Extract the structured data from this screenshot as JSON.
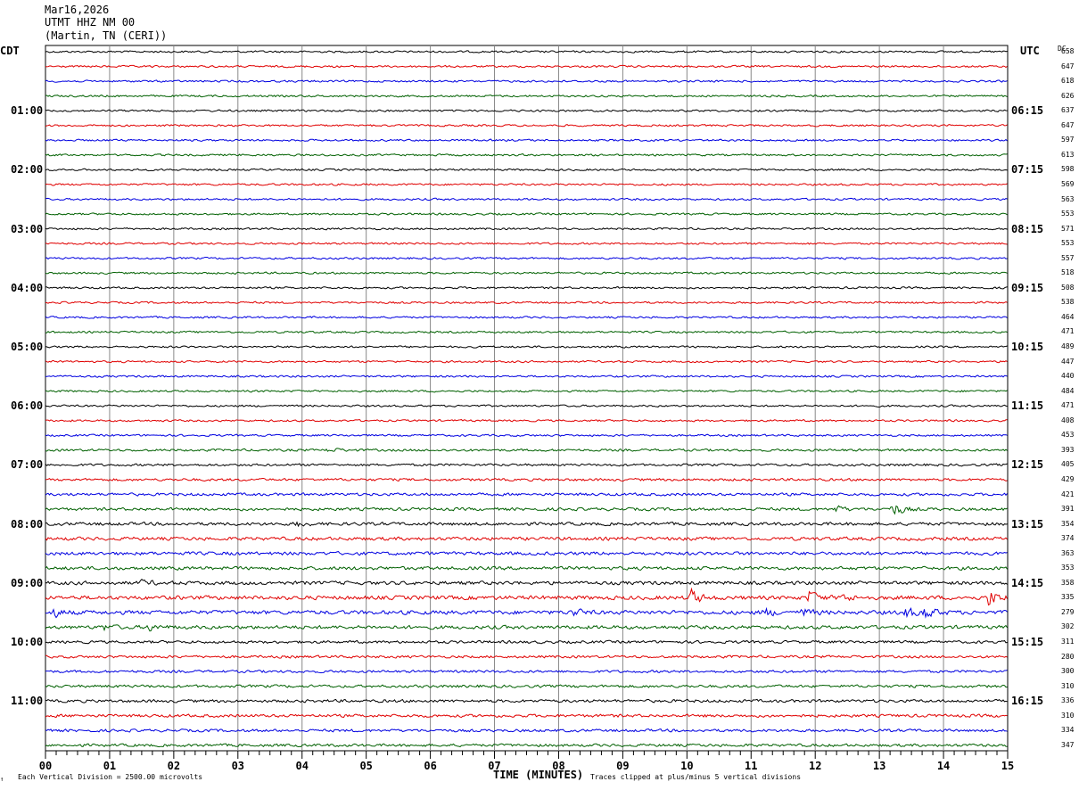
{
  "header": {
    "date": "Mar16,2026",
    "station": "UTMT HHZ NM 00",
    "location": "(Martin, TN (CERI))"
  },
  "left_timezone": "CDT",
  "right_timezone": "UTC",
  "dc_header": "DC",
  "footer": {
    "scale_note": "Each Vertical Division = 2500.00 microvolts",
    "clip_note": "Traces clipped at plus/minus 5 vertical divisions",
    "corner_mark": "↑"
  },
  "colors": {
    "trace_cycle": [
      "#000000",
      "#e00000",
      "#0000e0",
      "#006000"
    ],
    "grid": "#888888",
    "frame": "#000000"
  },
  "chart_data": {
    "type": "line",
    "xlabel": "TIME (MINUTES)",
    "xlim": [
      0,
      15
    ],
    "x_ticks": [
      "00",
      "01",
      "02",
      "03",
      "04",
      "05",
      "06",
      "07",
      "08",
      "09",
      "10",
      "11",
      "12",
      "13",
      "14",
      "15"
    ],
    "left_hour_labels": [
      "01:00",
      "02:00",
      "03:00",
      "04:00",
      "05:00",
      "06:00",
      "07:00",
      "08:00",
      "09:00",
      "10:00",
      "11:00"
    ],
    "right_hour_labels": [
      "06:15",
      "07:15",
      "08:15",
      "09:15",
      "10:15",
      "11:15",
      "12:15",
      "13:15",
      "14:15",
      "15:15",
      "16:15"
    ],
    "trace_count": 48,
    "dc_values": [
      658,
      647,
      618,
      626,
      637,
      647,
      597,
      613,
      598,
      569,
      563,
      553,
      571,
      553,
      557,
      518,
      508,
      538,
      464,
      471,
      489,
      447,
      440,
      484,
      471,
      408,
      453,
      393,
      405,
      429,
      421,
      391,
      354,
      374,
      363,
      353,
      358,
      335,
      279,
      302,
      311,
      280,
      300,
      310,
      336,
      310,
      334,
      347
    ],
    "noise_level": [
      1,
      1,
      1,
      1,
      1,
      1,
      1,
      1,
      1,
      1,
      1,
      1,
      1,
      1,
      1,
      1,
      1,
      1,
      1,
      1,
      1,
      1,
      1,
      1,
      1,
      1,
      1,
      1.2,
      1.2,
      1.3,
      1.4,
      1.5,
      1.6,
      1.7,
      1.7,
      1.7,
      1.8,
      2.0,
      2.0,
      1.8,
      1.4,
      1.3,
      1.3,
      1.4,
      1.5,
      1.5,
      1.4,
      1.4
    ],
    "events": [
      {
        "trace": 27,
        "minute": 4.4,
        "amp": 3
      },
      {
        "trace": 31,
        "minute": 13.2,
        "amp": 9
      },
      {
        "trace": 31,
        "minute": 12.3,
        "amp": 4
      },
      {
        "trace": 32,
        "minute": 3.9,
        "amp": 3
      },
      {
        "trace": 36,
        "minute": 1.5,
        "amp": 3
      },
      {
        "trace": 37,
        "minute": 10.05,
        "amp": 10
      },
      {
        "trace": 37,
        "minute": 11.9,
        "amp": 8
      },
      {
        "trace": 37,
        "minute": 14.7,
        "amp": 10
      },
      {
        "trace": 37,
        "minute": 12.4,
        "amp": 5
      },
      {
        "trace": 38,
        "minute": 0.1,
        "amp": 6
      },
      {
        "trace": 38,
        "minute": 8.2,
        "amp": 5
      },
      {
        "trace": 38,
        "minute": 11.2,
        "amp": 5
      },
      {
        "trace": 38,
        "minute": 11.8,
        "amp": 5
      },
      {
        "trace": 38,
        "minute": 13.4,
        "amp": 6
      },
      {
        "trace": 38,
        "minute": 13.7,
        "amp": 8
      },
      {
        "trace": 39,
        "minute": 0.9,
        "amp": 3
      },
      {
        "trace": 39,
        "minute": 1.6,
        "amp": 4
      }
    ]
  }
}
